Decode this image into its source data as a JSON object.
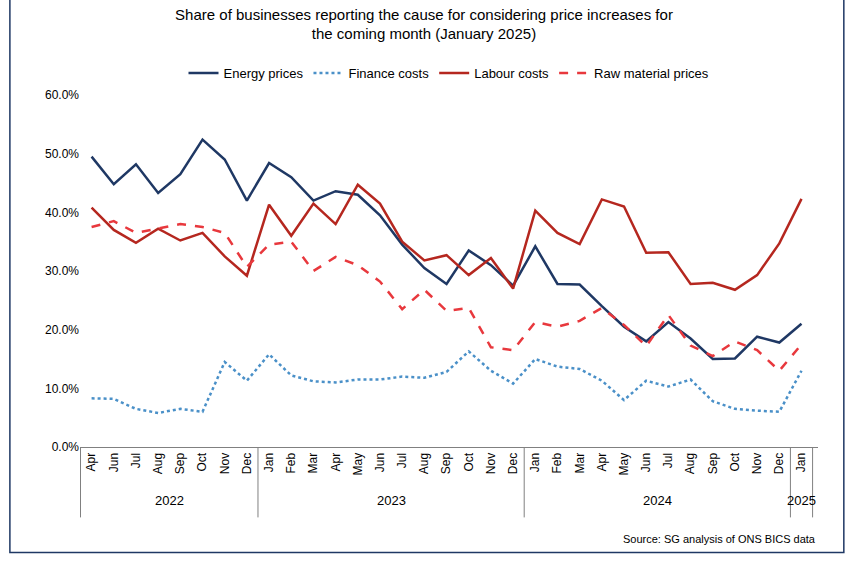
{
  "chart_data": {
    "type": "line",
    "title": "Share of businesses reporting the cause for considering price increases for\nthe coming month (January 2025)",
    "source": "Source: SG analysis of ONS BICS data",
    "categories": [
      "Apr",
      "Jun",
      "Jul",
      "Aug",
      "Sep",
      "Oct",
      "Nov",
      "Dec",
      "Jan",
      "Feb",
      "Mar",
      "Apr",
      "May",
      "Jun",
      "Jul",
      "Aug",
      "Sep",
      "Oct",
      "Nov",
      "Dec",
      "Jan",
      "Feb",
      "Mar",
      "Apr",
      "May",
      "Jun",
      "Jul",
      "Aug",
      "Sep",
      "Oct",
      "Nov",
      "Dec",
      "Jan"
    ],
    "year_groups": [
      {
        "label": "2022",
        "count": 8
      },
      {
        "label": "2023",
        "count": 12
      },
      {
        "label": "2024",
        "count": 12
      },
      {
        "label": "2025",
        "count": 1
      }
    ],
    "series": [
      {
        "name": "Energy prices",
        "color": "#1f3864",
        "line_style": "solid",
        "values": [
          49.5,
          44.8,
          48.2,
          43.3,
          46.5,
          52.4,
          49.0,
          42.0,
          48.4,
          46.0,
          42.0,
          43.6,
          43.0,
          39.5,
          34.5,
          30.5,
          27.8,
          33.5,
          31.0,
          27.5,
          34.2,
          27.8,
          27.7,
          24.0,
          20.5,
          18.0,
          21.3,
          18.5,
          15.0,
          15.1,
          18.8,
          17.8,
          21.0
        ]
      },
      {
        "name": "Finance costs",
        "color": "#4a90c8",
        "line_style": "dot",
        "values": [
          8.3,
          8.2,
          6.5,
          5.8,
          6.5,
          6.0,
          14.5,
          11.3,
          15.8,
          12.2,
          11.2,
          11.0,
          11.5,
          11.5,
          12.0,
          11.8,
          12.8,
          16.3,
          13.0,
          10.8,
          15.0,
          13.7,
          13.3,
          11.3,
          8.0,
          11.3,
          10.3,
          11.5,
          7.8,
          6.5,
          6.2,
          6.0,
          13.0
        ]
      },
      {
        "name": "Labour costs",
        "color": "#b5271f",
        "line_style": "solid",
        "values": [
          40.8,
          37.0,
          34.8,
          37.2,
          35.2,
          36.5,
          32.5,
          29.2,
          41.3,
          36.0,
          41.5,
          38.0,
          44.7,
          41.5,
          35.0,
          31.8,
          32.7,
          29.3,
          32.2,
          27.0,
          40.3,
          36.5,
          34.6,
          42.2,
          41.0,
          33.1,
          33.2,
          27.8,
          28.0,
          26.8,
          29.3,
          34.7,
          42.3
        ]
      },
      {
        "name": "Raw material prices",
        "color": "#e8383d",
        "line_style": "dash",
        "values": [
          37.5,
          38.5,
          36.5,
          37.2,
          38.0,
          37.5,
          36.5,
          30.7,
          34.5,
          35.0,
          30.0,
          32.4,
          31.0,
          28.2,
          23.5,
          26.8,
          23.2,
          23.7,
          17.0,
          16.5,
          21.3,
          20.5,
          21.5,
          23.7,
          20.8,
          17.2,
          22.5,
          17.3,
          15.5,
          18.0,
          16.5,
          13.0,
          17.5
        ]
      }
    ],
    "ylim": [
      0,
      60
    ],
    "yticks": [
      {
        "value": 0,
        "label": "0.0%"
      },
      {
        "value": 10,
        "label": "10.0%"
      },
      {
        "value": 20,
        "label": "20.0%"
      },
      {
        "value": 30,
        "label": "30.0%"
      },
      {
        "value": 40,
        "label": "40.0%"
      },
      {
        "value": 50,
        "label": "50.0%"
      },
      {
        "value": 60,
        "label": "60.0%"
      }
    ],
    "grid": false,
    "legend": "top"
  }
}
